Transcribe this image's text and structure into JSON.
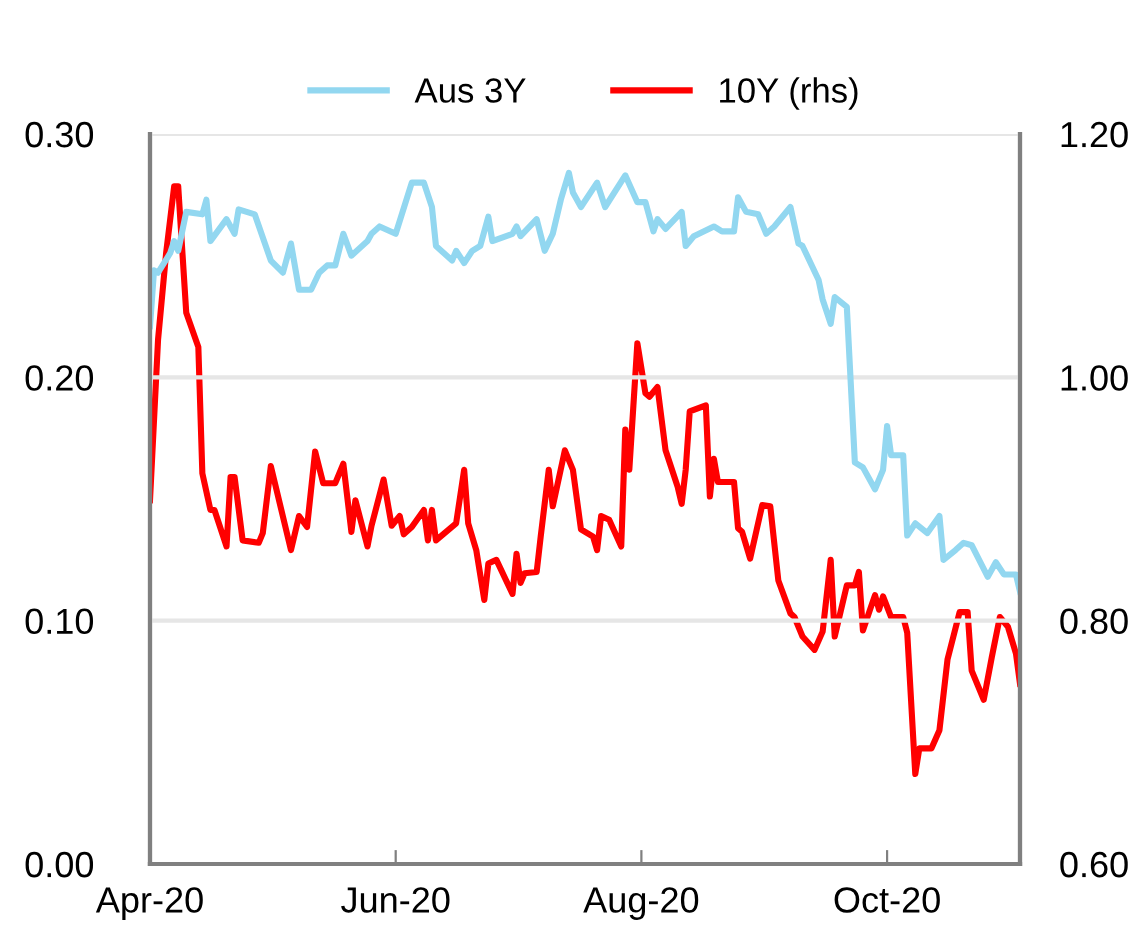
{
  "chart_data": {
    "type": "line",
    "xlim": [
      "2020-04-01",
      "2020-11-03"
    ],
    "xticks": [
      {
        "value": "2020-04-01",
        "label": "Apr-20"
      },
      {
        "value": "2020-06-01",
        "label": "Jun-20"
      },
      {
        "value": "2020-08-01",
        "label": "Aug-20"
      },
      {
        "value": "2020-10-01",
        "label": "Oct-20"
      }
    ],
    "ylim": [
      0,
      0.3
    ],
    "yticks": [
      {
        "value": 0,
        "label": "0.00"
      },
      {
        "value": 0.1,
        "label": "0.10"
      },
      {
        "value": 0.2,
        "label": "0.20"
      },
      {
        "value": 0.3,
        "label": "0.30"
      }
    ],
    "y2lim": [
      0.6,
      1.2
    ],
    "y2ticks": [
      {
        "value": 0.6,
        "label": "0.60"
      },
      {
        "value": 0.8,
        "label": "0.80"
      },
      {
        "value": 1.0,
        "label": "1.00"
      },
      {
        "value": 1.2,
        "label": "1.20"
      }
    ],
    "grid": "y",
    "legend": "top",
    "line_style": "solid",
    "marker": "none",
    "series": [
      {
        "name": "Aus 3Y",
        "color": "#92d7f0",
        "x": [
          "2020-04-01",
          "2020-04-02",
          "2020-04-03",
          "2020-04-06",
          "2020-04-07",
          "2020-04-08",
          "2020-04-10",
          "2020-04-14",
          "2020-04-15",
          "2020-04-16",
          "2020-04-20",
          "2020-04-22",
          "2020-04-23",
          "2020-04-27",
          "2020-05-01",
          "2020-05-04",
          "2020-05-06",
          "2020-05-08",
          "2020-05-11",
          "2020-05-13",
          "2020-05-15",
          "2020-05-17",
          "2020-05-19",
          "2020-05-21",
          "2020-05-25",
          "2020-05-26",
          "2020-05-28",
          "2020-06-01",
          "2020-06-05",
          "2020-06-08",
          "2020-06-10",
          "2020-06-11",
          "2020-06-15",
          "2020-06-16",
          "2020-06-18",
          "2020-06-20",
          "2020-06-22",
          "2020-06-24",
          "2020-06-25",
          "2020-06-30",
          "2020-07-01",
          "2020-07-02",
          "2020-07-06",
          "2020-07-08",
          "2020-07-10",
          "2020-07-12",
          "2020-07-14",
          "2020-07-15",
          "2020-07-17",
          "2020-07-21",
          "2020-07-23",
          "2020-07-28",
          "2020-07-31",
          "2020-08-02",
          "2020-08-04",
          "2020-08-05",
          "2020-08-07",
          "2020-08-11",
          "2020-08-12",
          "2020-08-14",
          "2020-08-19",
          "2020-08-21",
          "2020-08-24",
          "2020-08-25",
          "2020-08-27",
          "2020-08-30",
          "2020-09-01",
          "2020-09-03",
          "2020-09-07",
          "2020-09-09",
          "2020-09-10",
          "2020-09-14",
          "2020-09-15",
          "2020-09-17",
          "2020-09-18",
          "2020-09-21",
          "2020-09-23",
          "2020-09-25",
          "2020-09-28",
          "2020-09-30",
          "2020-10-01",
          "2020-10-02",
          "2020-10-05",
          "2020-10-06",
          "2020-10-08",
          "2020-10-11",
          "2020-10-14",
          "2020-10-15",
          "2020-10-18",
          "2020-10-20",
          "2020-10-22",
          "2020-10-26",
          "2020-10-28",
          "2020-10-30",
          "2020-11-02",
          "2020-11-03"
        ],
        "values": [
          0.221,
          0.244,
          0.243,
          0.251,
          0.256,
          0.252,
          0.268,
          0.267,
          0.273,
          0.256,
          0.265,
          0.259,
          0.269,
          0.267,
          0.248,
          0.243,
          0.255,
          0.236,
          0.236,
          0.243,
          0.246,
          0.246,
          0.259,
          0.25,
          0.256,
          0.259,
          0.262,
          0.259,
          0.28,
          0.28,
          0.27,
          0.254,
          0.248,
          0.252,
          0.247,
          0.252,
          0.254,
          0.266,
          0.256,
          0.259,
          0.262,
          0.258,
          0.265,
          0.252,
          0.259,
          0.273,
          0.284,
          0.276,
          0.27,
          0.28,
          0.27,
          0.283,
          0.272,
          0.272,
          0.26,
          0.265,
          0.261,
          0.268,
          0.254,
          0.258,
          0.262,
          0.26,
          0.26,
          0.274,
          0.268,
          0.267,
          0.259,
          0.262,
          0.27,
          0.255,
          0.254,
          0.24,
          0.232,
          0.222,
          0.233,
          0.229,
          0.165,
          0.163,
          0.154,
          0.162,
          0.18,
          0.168,
          0.168,
          0.135,
          0.14,
          0.136,
          0.143,
          0.125,
          0.129,
          0.132,
          0.131,
          0.118,
          0.124,
          0.119,
          0.119,
          0.112
        ]
      },
      {
        "name": "10Y (rhs)",
        "color": "#ff0000",
        "axis": "y2",
        "x": [
          "2020-04-01",
          "2020-04-03",
          "2020-04-05",
          "2020-04-07",
          "2020-04-08",
          "2020-04-10",
          "2020-04-13",
          "2020-04-14",
          "2020-04-16",
          "2020-04-17",
          "2020-04-20",
          "2020-04-21",
          "2020-04-22",
          "2020-04-24",
          "2020-04-28",
          "2020-04-29",
          "2020-05-01",
          "2020-05-06",
          "2020-05-08",
          "2020-05-10",
          "2020-05-12",
          "2020-05-14",
          "2020-05-17",
          "2020-05-19",
          "2020-05-21",
          "2020-05-22",
          "2020-05-25",
          "2020-05-26",
          "2020-05-29",
          "2020-05-31",
          "2020-06-02",
          "2020-06-03",
          "2020-06-05",
          "2020-06-08",
          "2020-06-09",
          "2020-06-10",
          "2020-06-11",
          "2020-06-16",
          "2020-06-18",
          "2020-06-19",
          "2020-06-21",
          "2020-06-23",
          "2020-06-24",
          "2020-06-26",
          "2020-06-30",
          "2020-07-01",
          "2020-07-02",
          "2020-07-03",
          "2020-07-06",
          "2020-07-07",
          "2020-07-09",
          "2020-07-10",
          "2020-07-13",
          "2020-07-15",
          "2020-07-17",
          "2020-07-20",
          "2020-07-21",
          "2020-07-22",
          "2020-07-24",
          "2020-07-27",
          "2020-07-28",
          "2020-07-29",
          "2020-07-31",
          "2020-08-02",
          "2020-08-03",
          "2020-08-05",
          "2020-08-07",
          "2020-08-10",
          "2020-08-11",
          "2020-08-12",
          "2020-08-13",
          "2020-08-17",
          "2020-08-18",
          "2020-08-19",
          "2020-08-20",
          "2020-08-24",
          "2020-08-25",
          "2020-08-26",
          "2020-08-28",
          "2020-08-31",
          "2020-09-02",
          "2020-09-04",
          "2020-09-07",
          "2020-09-08",
          "2020-09-10",
          "2020-09-13",
          "2020-09-15",
          "2020-09-17",
          "2020-09-18",
          "2020-09-21",
          "2020-09-23",
          "2020-09-24",
          "2020-09-25",
          "2020-09-28",
          "2020-09-29",
          "2020-09-30",
          "2020-10-02",
          "2020-10-05",
          "2020-10-06",
          "2020-10-08",
          "2020-10-09",
          "2020-10-12",
          "2020-10-14",
          "2020-10-16",
          "2020-10-19",
          "2020-10-21",
          "2020-10-22",
          "2020-10-25",
          "2020-10-27",
          "2020-10-29",
          "2020-10-31",
          "2020-11-02",
          "2020-11-03"
        ],
        "values": [
          0.899,
          1.031,
          1.102,
          1.157,
          1.157,
          1.053,
          1.025,
          0.921,
          0.891,
          0.891,
          0.861,
          0.918,
          0.918,
          0.866,
          0.864,
          0.872,
          0.927,
          0.858,
          0.886,
          0.877,
          0.939,
          0.913,
          0.913,
          0.929,
          0.873,
          0.899,
          0.861,
          0.878,
          0.916,
          0.878,
          0.886,
          0.871,
          0.877,
          0.891,
          0.866,
          0.891,
          0.866,
          0.88,
          0.924,
          0.88,
          0.858,
          0.817,
          0.847,
          0.85,
          0.822,
          0.855,
          0.831,
          0.839,
          0.84,
          0.869,
          0.924,
          0.894,
          0.94,
          0.924,
          0.875,
          0.869,
          0.858,
          0.886,
          0.883,
          0.861,
          0.957,
          0.924,
          1.028,
          0.987,
          0.984,
          0.992,
          0.94,
          0.91,
          0.896,
          0.924,
          0.972,
          0.977,
          0.902,
          0.933,
          0.914,
          0.914,
          0.876,
          0.873,
          0.851,
          0.895,
          0.894,
          0.833,
          0.806,
          0.803,
          0.787,
          0.776,
          0.791,
          0.85,
          0.787,
          0.829,
          0.829,
          0.84,
          0.792,
          0.821,
          0.809,
          0.82,
          0.803,
          0.803,
          0.79,
          0.674,
          0.695,
          0.695,
          0.71,
          0.768,
          0.807,
          0.807,
          0.759,
          0.735,
          0.77,
          0.803,
          0.795,
          0.773,
          0.748
        ]
      }
    ]
  }
}
